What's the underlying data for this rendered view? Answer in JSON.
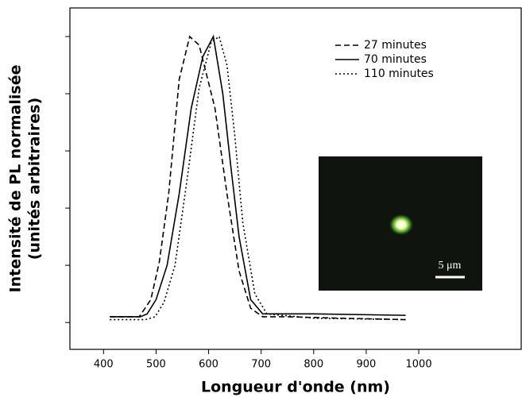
{
  "chart_data": {
    "type": "line",
    "x_label": "Longueur d'onde (nm)",
    "y_label": [
      "Intensité de PL normalisée",
      "(unités arbitraires)"
    ],
    "xlim": [
      336,
      1195
    ],
    "ylim": [
      -0.094,
      1.1
    ],
    "xticks": [
      400,
      500,
      600,
      700,
      800,
      900,
      1000
    ],
    "yticks": [
      0,
      0.2,
      0.4,
      0.6,
      0.8,
      1.0
    ],
    "legend": "upper right",
    "inset_label": "5 μm",
    "series": [
      {
        "name": "27 minutes",
        "color": "#000000",
        "style": "dashed",
        "x": [
          412,
          468,
          490,
          506,
          524,
          544,
          564,
          582,
          612,
          635,
          658,
          680,
          703,
          750,
          850,
          975
        ],
        "values": [
          0.02,
          0.02,
          0.08,
          0.21,
          0.45,
          0.85,
          1.0,
          0.97,
          0.75,
          0.45,
          0.18,
          0.05,
          0.02,
          0.02,
          0.015,
          0.01
        ]
      },
      {
        "name": "70 minutes",
        "color": "#000000",
        "style": "solid",
        "x": [
          412,
          470,
          483,
          500,
          521,
          544,
          567,
          589,
          609,
          627,
          642,
          658,
          680,
          703,
          800,
          975
        ],
        "values": [
          0.02,
          0.02,
          0.03,
          0.08,
          0.2,
          0.45,
          0.75,
          0.93,
          1.0,
          0.8,
          0.55,
          0.3,
          0.08,
          0.03,
          0.03,
          0.025
        ]
      },
      {
        "name": "110 minutes",
        "color": "#000000",
        "style": "dotted",
        "x": [
          412,
          480,
          498,
          515,
          536,
          559,
          582,
          605,
          620,
          635,
          650,
          665,
          688,
          711,
          800,
          975
        ],
        "values": [
          0.01,
          0.01,
          0.02,
          0.07,
          0.2,
          0.5,
          0.82,
          0.98,
          1.0,
          0.9,
          0.65,
          0.35,
          0.1,
          0.03,
          0.015,
          0.01
        ]
      }
    ]
  }
}
